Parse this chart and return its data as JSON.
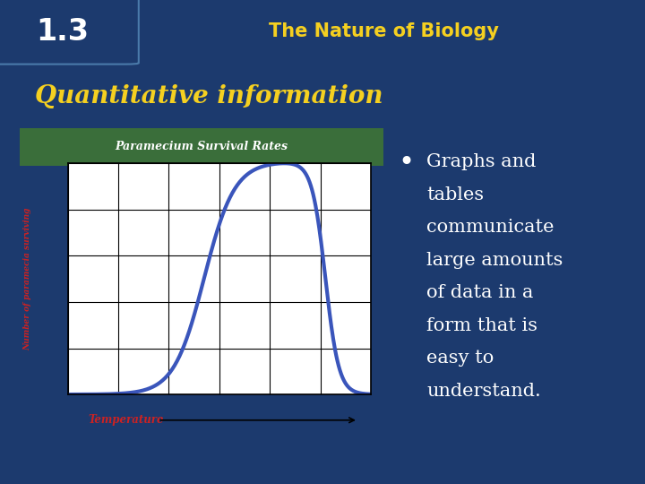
{
  "slide_bg": "#1c3a6e",
  "header_bg": "#2d6e2d",
  "header_text": "The Nature of Biology",
  "header_text_color": "#f5d020",
  "number_bg": "#1c3a6e",
  "number_text": "1.3",
  "number_text_color": "#ffffff",
  "title_text": "Quantitative information",
  "title_color": "#f5d020",
  "chart_outer_bg": "#d4c89a",
  "chart_title": "Paramecium Survival Rates",
  "chart_title_bg": "#3a6e3a",
  "chart_title_color": "#ffffff",
  "chart_plot_bg": "#ffffff",
  "chart_grid_color": "#000000",
  "chart_line_color": "#3a55bb",
  "xlabel": "Temperature",
  "xlabel_color": "#cc2222",
  "ylabel": "Number of paramecia surviving",
  "ylabel_color": "#cc2222",
  "bullet_text_lines": [
    "Graphs and",
    "tables",
    "communicate",
    "large amounts",
    "of data in a",
    "form that is",
    "easy to",
    "understand."
  ],
  "bullet_color": "#ffffff",
  "footer_bg": "#2d6e2d",
  "border_color": "#2d6e2d"
}
